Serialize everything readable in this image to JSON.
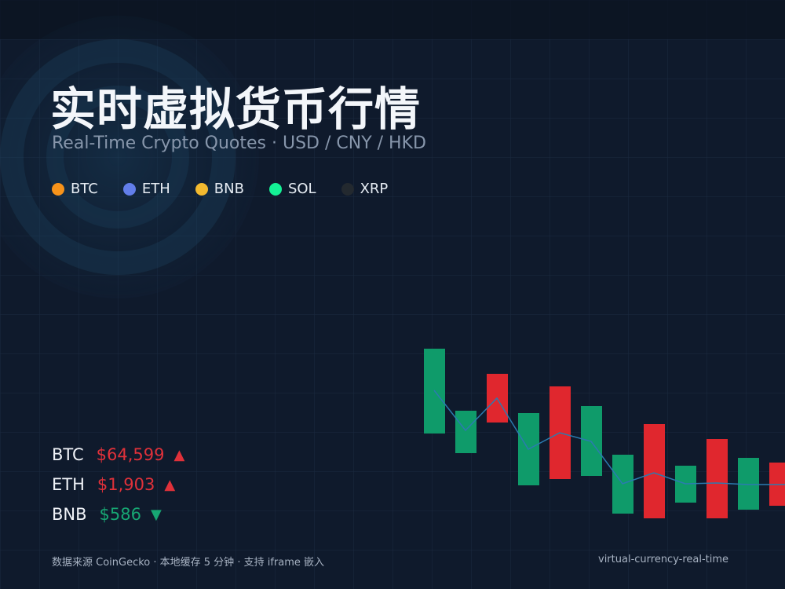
{
  "header": {
    "title": "实时虚拟货币行情",
    "subtitle": "Real-Time Crypto Quotes · USD / CNY / HKD"
  },
  "legend": [
    {
      "name": "BTC",
      "color": "#f7931a"
    },
    {
      "name": "ETH",
      "color": "#627eea"
    },
    {
      "name": "BNB",
      "color": "#f3ba2f"
    },
    {
      "name": "SOL",
      "color": "#14f195"
    },
    {
      "name": "XRP",
      "color": "#23292f"
    }
  ],
  "quotes": [
    {
      "symbol": "BTC",
      "price": "$64,599",
      "arrow": "▲"
    },
    {
      "symbol": "ETH",
      "price": "$1,903",
      "arrow": "▲"
    },
    {
      "symbol": "BNB",
      "price": "$586",
      "arrow": "▼"
    }
  ],
  "footer": {
    "source": "数据来源 CoinGecko · 本地缓存 5 分钟 · 支持 iframe 嵌入",
    "slug": "virtual-currency-real-time"
  }
}
